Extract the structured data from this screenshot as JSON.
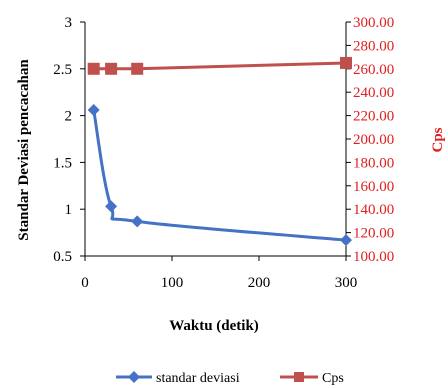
{
  "chart_data": {
    "type": "line",
    "xlabel": "Waktu (detik)",
    "ylabel": "Standar Deviasi pencacahan",
    "y2label": "Cps",
    "x_ticks": [
      "0",
      "100",
      "200",
      "300"
    ],
    "xlim": [
      0,
      300
    ],
    "ylim": [
      0.5,
      3
    ],
    "y_ticks": [
      "0.5",
      "1",
      "1.5",
      "2",
      "2.5",
      "3"
    ],
    "y2lim": [
      100,
      300
    ],
    "y2_ticks": [
      "100.00",
      "120.00",
      "140.00",
      "160.00",
      "180.00",
      "200.00",
      "220.00",
      "240.00",
      "260.00",
      "280.00",
      "300.00"
    ],
    "grid": false,
    "legend_position": "bottom",
    "series": [
      {
        "name": "standar deviasi",
        "axis": "left",
        "color": "#4472c4",
        "marker": "diamond",
        "x": [
          10,
          30,
          60,
          300
        ],
        "values": [
          2.06,
          1.03,
          0.87,
          0.67
        ]
      },
      {
        "name": "Cps",
        "axis": "right",
        "color": "#c0504d",
        "marker": "square",
        "x": [
          10,
          30,
          60,
          300
        ],
        "values": [
          260,
          260,
          260,
          265
        ]
      }
    ]
  }
}
